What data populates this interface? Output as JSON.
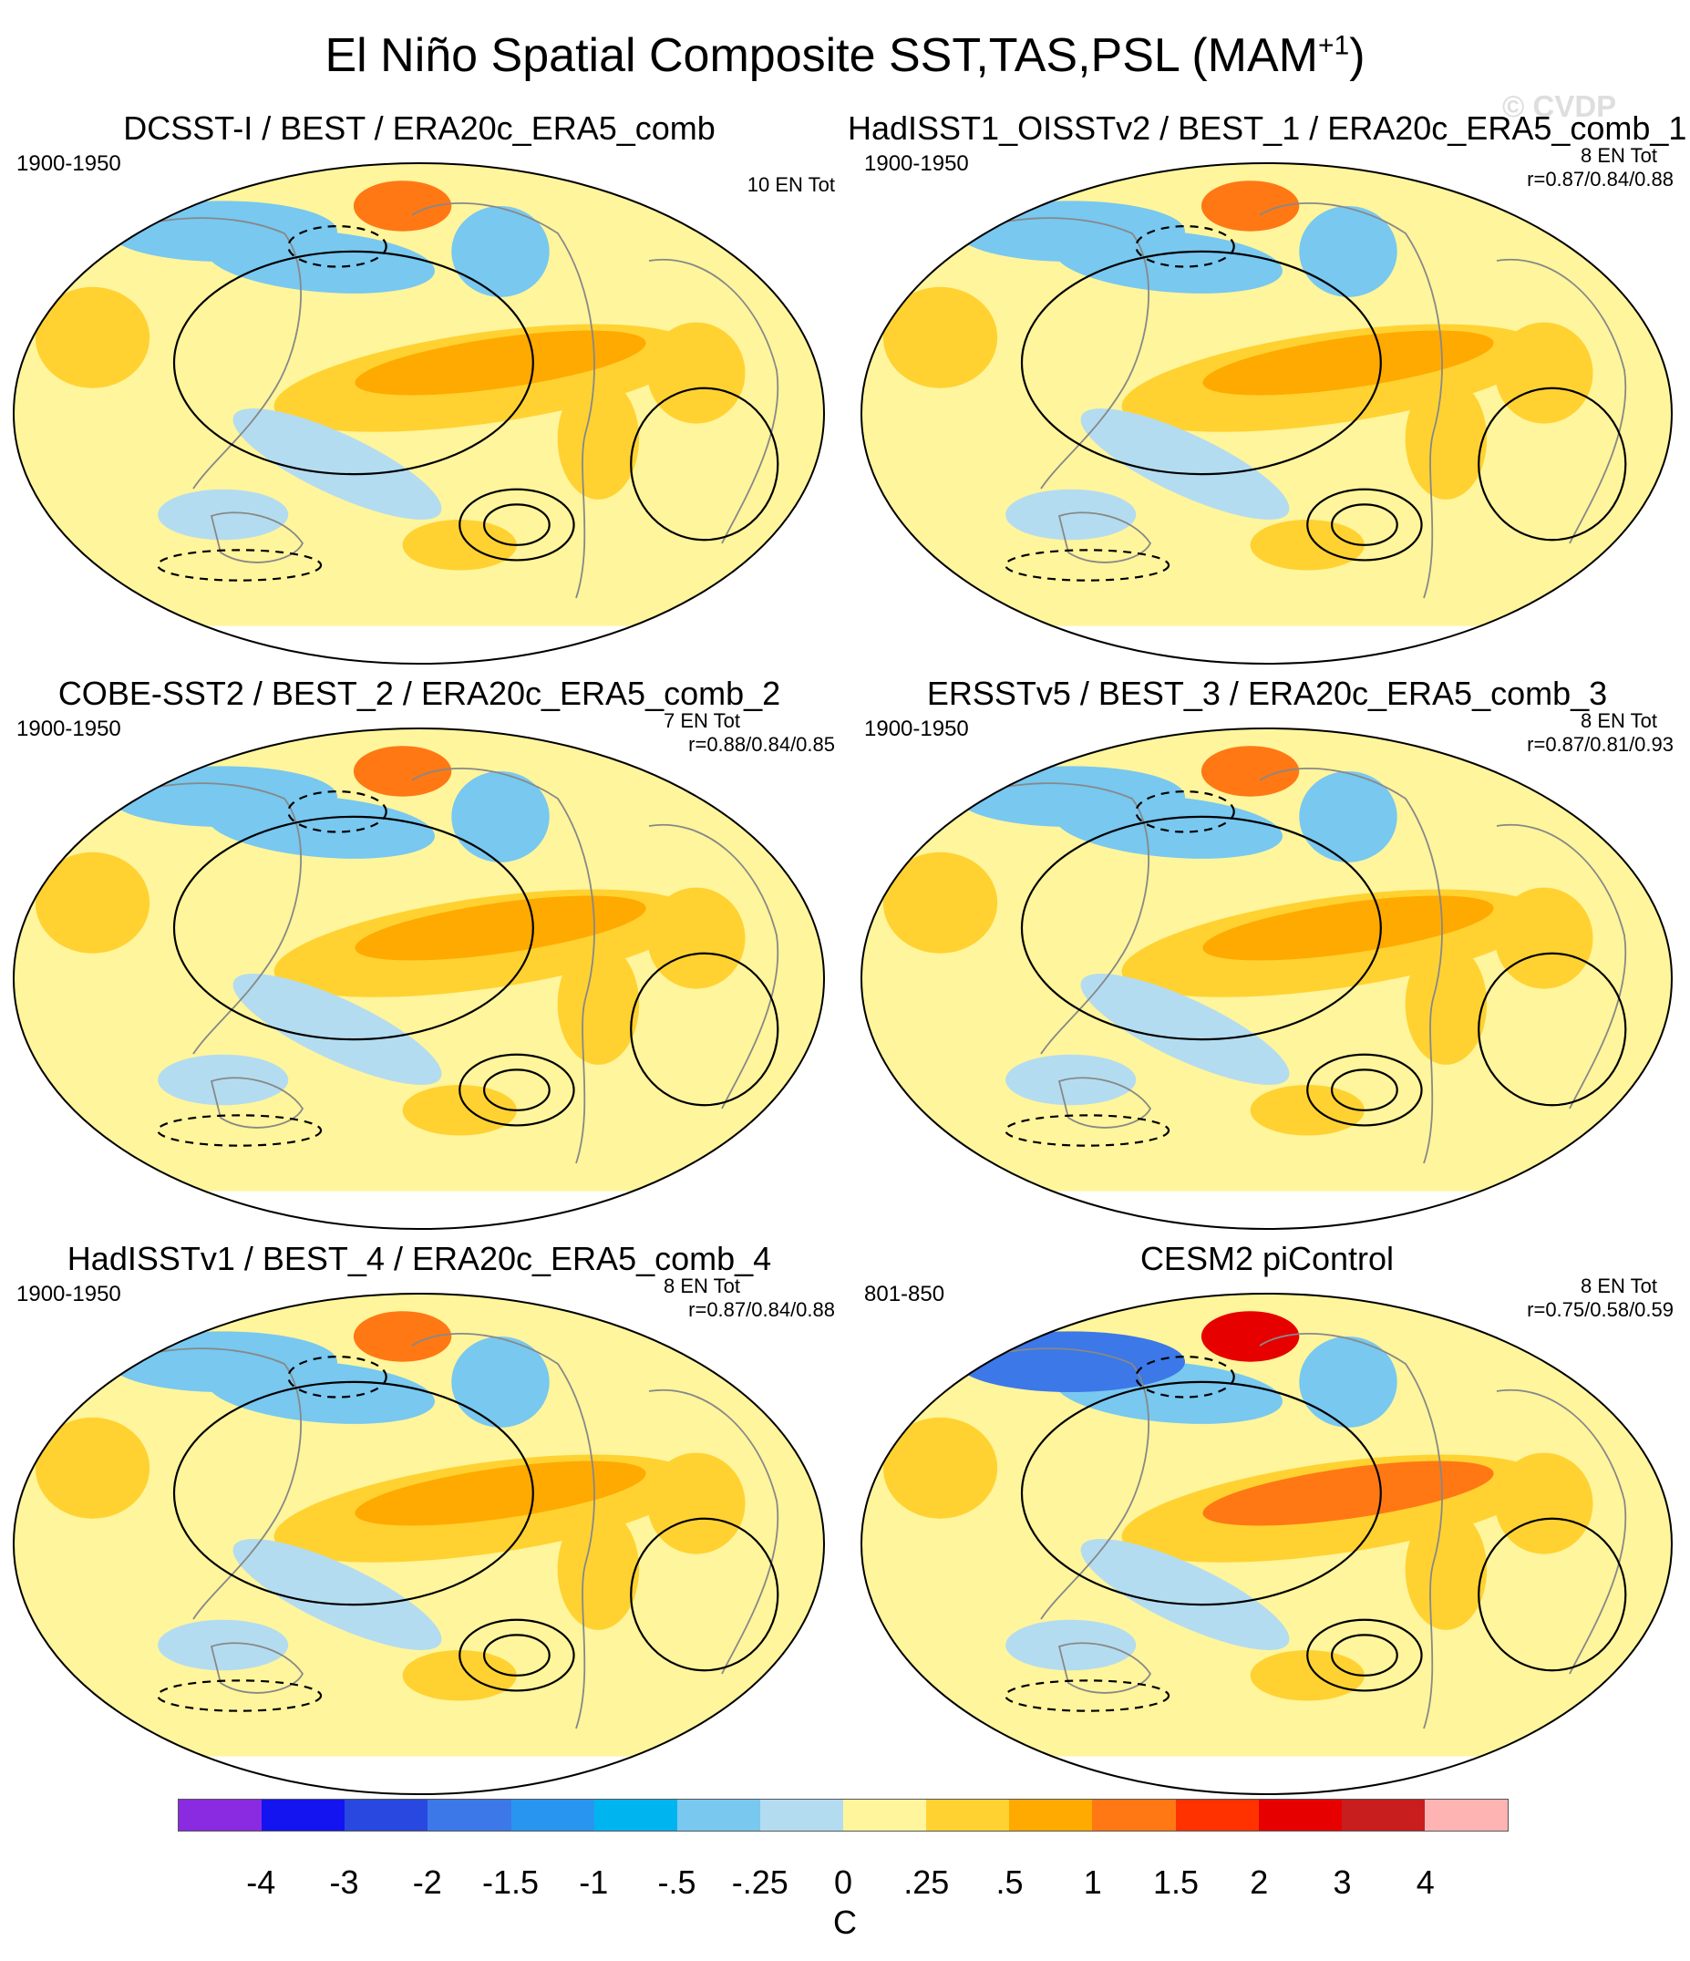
{
  "title": {
    "main": "El Niño Spatial Composite SST,TAS,PSL (MAM",
    "superscript": "+1",
    "close": ")"
  },
  "watermark": "© CVDP",
  "panels": [
    {
      "title": "DCSST-I / BEST / ERA20c_ERA5_comb",
      "years": "1900-1950",
      "events": "10 EN Tot",
      "corr": ""
    },
    {
      "title": "HadISST1_OISSTv2 / BEST_1 / ERA20c_ERA5_comb_1",
      "years": "1900-1950",
      "events": "8 EN Tot",
      "corr": "r=0.87/0.84/0.88"
    },
    {
      "title": "COBE-SST2 / BEST_2 / ERA20c_ERA5_comb_2",
      "years": "1900-1950",
      "events": "7 EN Tot",
      "corr": "r=0.88/0.84/0.85"
    },
    {
      "title": "ERSSTv5 / BEST_3 / ERA20c_ERA5_comb_3",
      "years": "1900-1950",
      "events": "8 EN Tot",
      "corr": "r=0.87/0.81/0.93"
    },
    {
      "title": "HadISSTv1 / BEST_4 / ERA20c_ERA5_comb_4",
      "years": "1900-1950",
      "events": "8 EN Tot",
      "corr": "r=0.87/0.84/0.88"
    },
    {
      "title": "CESM2 piControl",
      "years": "801-850",
      "events": "8 EN Tot",
      "corr": "r=0.75/0.58/0.59"
    }
  ],
  "colorbar": {
    "colors": [
      "#8a2be2",
      "#1414f0",
      "#2848e0",
      "#3c78e8",
      "#2896f0",
      "#00b4f0",
      "#78c8f0",
      "#b4dcf0",
      "#fff59c",
      "#ffd232",
      "#ffaa00",
      "#ff7814",
      "#ff3200",
      "#e60000",
      "#c81e1e",
      "#ffb4b4"
    ],
    "tick_labels": [
      "-4",
      "-3",
      "-2",
      "-1.5",
      "-1",
      "-.5",
      "-.25",
      "0",
      ".25",
      ".5",
      "1",
      "1.5",
      "2",
      "3",
      "4"
    ],
    "unit": "C"
  }
}
